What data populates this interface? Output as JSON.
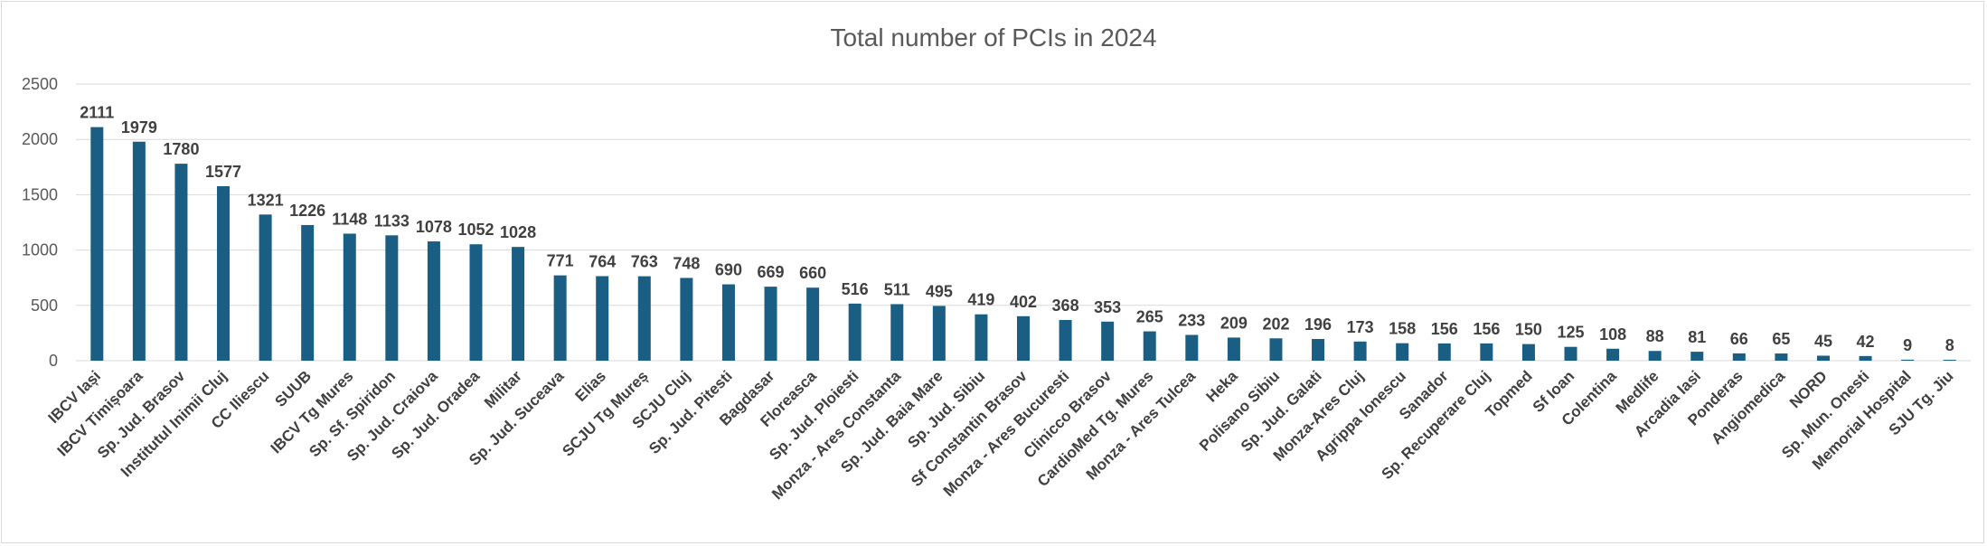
{
  "chart_data": {
    "type": "bar",
    "title": "Total number of PCIs in 2024",
    "xlabel": "",
    "ylabel": "",
    "ylim": [
      0,
      2500
    ],
    "yticks": [
      0,
      500,
      1000,
      1500,
      2000,
      2500
    ],
    "ytick_labels": [
      "0",
      "500",
      "1000",
      "1500",
      "2000",
      "2500"
    ],
    "grid": true,
    "legend": "none",
    "bar_color": "#1a5e83",
    "categories": [
      "IBCV Iași",
      "IBCV Timișoara",
      "Sp. Jud. Brasov",
      "Institutul Inimii Cluj",
      "CC Iliescu",
      "SUUB",
      "IBCV Tg Mures",
      "Sp. Sf. Spiridon",
      "Sp. Jud. Craiova",
      "Sp. Jud. Oradea",
      "Militar",
      "Sp. Jud. Suceava",
      "Elias",
      "SCJU Tg Mureș",
      "SCJU Cluj",
      "Sp. Jud. Pitesti",
      "Bagdasar",
      "Floreasca",
      "Sp. Jud. Ploiesti",
      "Monza - Ares Constanta",
      "Sp. Jud. Baia Mare",
      "Sp. Jud. Sibiu",
      "Sf Constantin Brasov",
      "Monza - Ares Bucuresti",
      "Clinicco Brasov",
      "CardioMed Tg. Mures",
      "Monza - Ares Tulcea",
      "Heka",
      "Polisano Sibiu",
      "Sp. Jud. Galati",
      "Monza-Ares Cluj",
      "Agrippa Ionescu",
      "Sanador",
      "Sp. Recuperare Cluj",
      "Topmed",
      "Sf Ioan",
      "Colentina",
      "Medlife",
      "Arcadia Iasi",
      "Ponderas",
      "Angiomedica",
      "NORD",
      "Sp. Mun. Onesti",
      "Memorial Hospital",
      "SJU Tg. Jiu"
    ],
    "values": [
      2111,
      1979,
      1780,
      1577,
      1321,
      1226,
      1148,
      1133,
      1078,
      1052,
      1028,
      771,
      764,
      763,
      748,
      690,
      669,
      660,
      516,
      511,
      495,
      419,
      402,
      368,
      353,
      265,
      233,
      209,
      202,
      196,
      173,
      158,
      156,
      156,
      150,
      125,
      108,
      88,
      81,
      66,
      65,
      45,
      42,
      9,
      8
    ],
    "data_labels": [
      "2111",
      "1979",
      "1780",
      "1577",
      "1321",
      "1226",
      "1148",
      "1133",
      "1078",
      "1052",
      "1028",
      "771",
      "764",
      "763",
      "748",
      "690",
      "669",
      "660",
      "516",
      "511",
      "495",
      "419",
      "402",
      "368",
      "353",
      "265",
      "233",
      "209",
      "202",
      "196",
      "173",
      "158",
      "156",
      "156",
      "150",
      "125",
      "108",
      "88",
      "81",
      "66",
      "65",
      "45",
      "42",
      "9",
      "8"
    ]
  }
}
